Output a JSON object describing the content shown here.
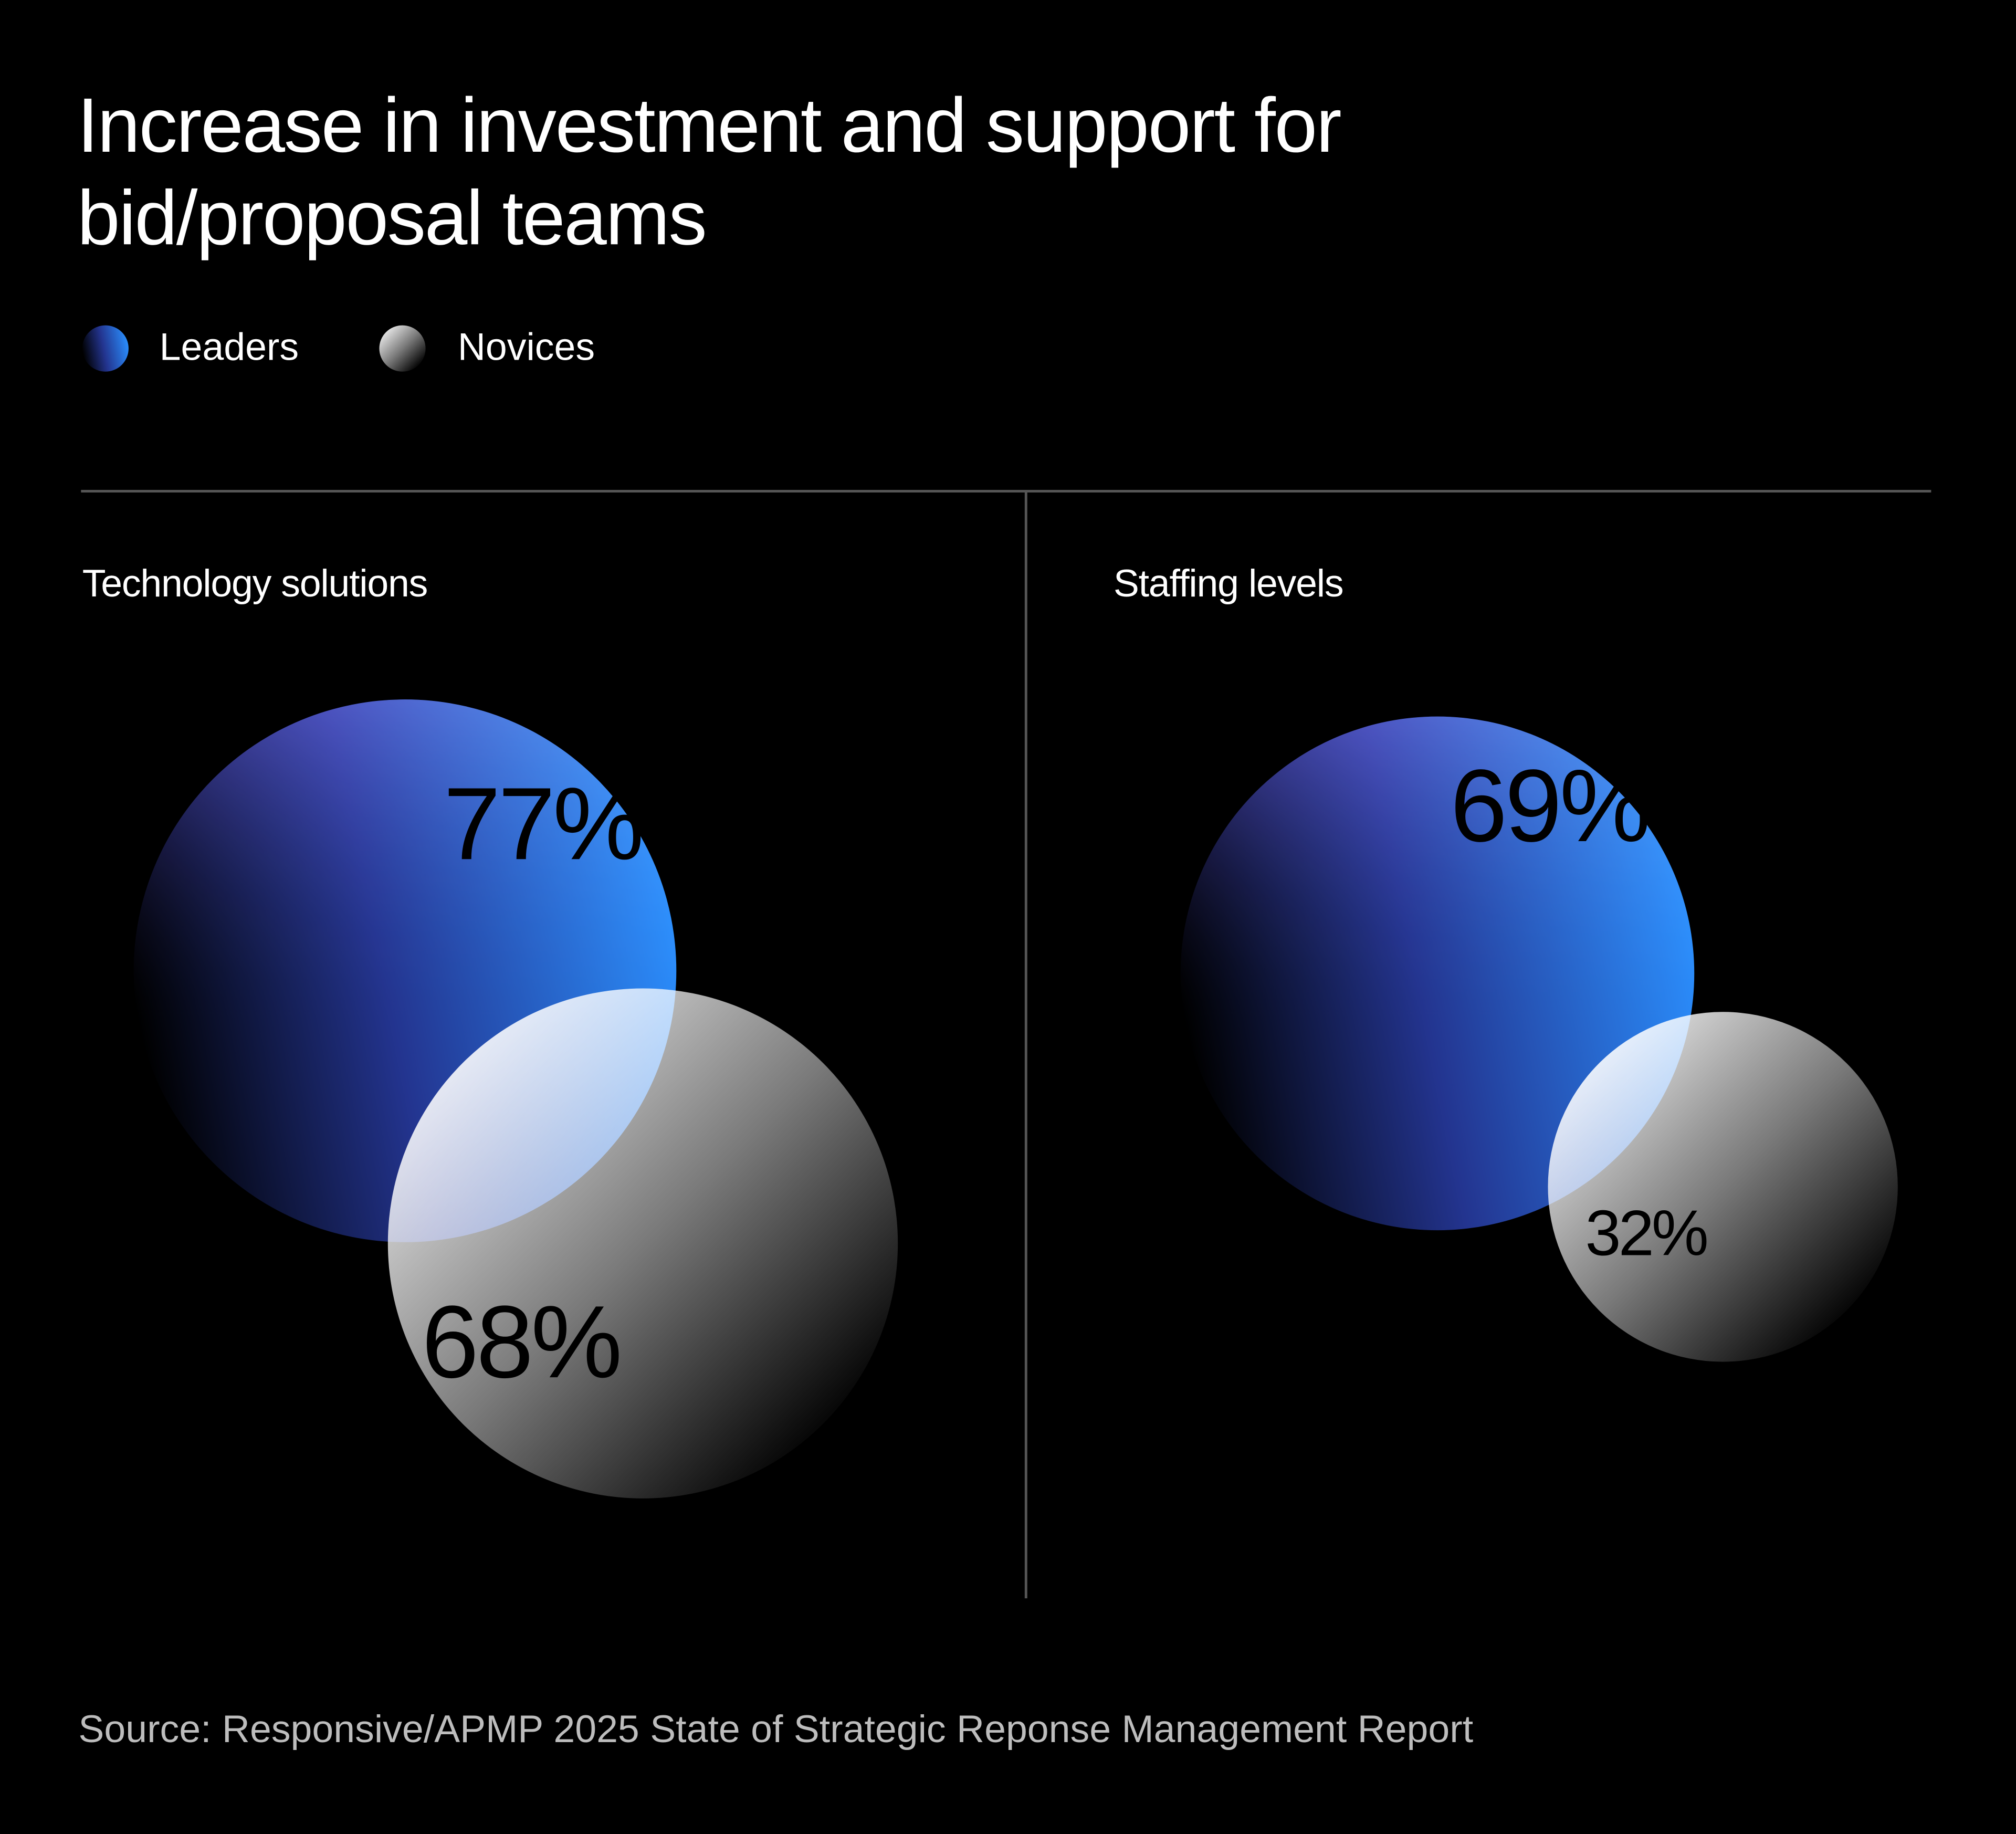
{
  "title": "Increase in investment and support for bid/proposal teams",
  "source": "Source: Responsive/APMP 2025 State of Strategic Reponse Management Report",
  "chart_data": [
    {
      "type": "bubble",
      "title": "Technology solutions",
      "series": [
        {
          "name": "Leaders",
          "color": "#2a8cff",
          "values": [
            77
          ],
          "value_labels": [
            "77%"
          ]
        },
        {
          "name": "Novices",
          "color": "#ffffff",
          "values": [
            68
          ],
          "value_labels": [
            "68%"
          ]
        }
      ]
    },
    {
      "type": "bubble",
      "title": "Staffing levels",
      "series": [
        {
          "name": "Leaders",
          "color": "#2a8cff",
          "values": [
            69
          ],
          "value_labels": [
            "69%"
          ]
        },
        {
          "name": "Novices",
          "color": "#ffffff",
          "values": [
            32
          ],
          "value_labels": [
            "32%"
          ]
        }
      ]
    }
  ]
}
